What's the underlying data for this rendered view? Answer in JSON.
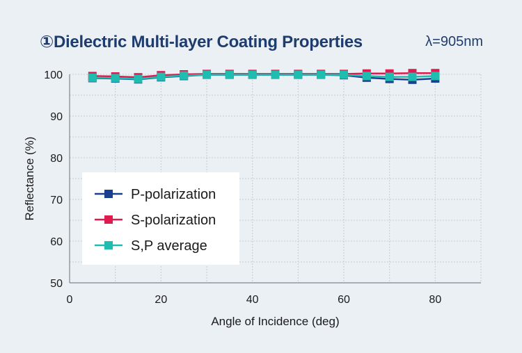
{
  "header": {
    "title": "①Dielectric Multi-layer Coating Properties",
    "wavelength": "λ=905nm"
  },
  "chart_data": {
    "type": "line",
    "title": "①Dielectric Multi-layer Coating Properties",
    "xlabel": "Angle of Incidence (deg)",
    "ylabel": "Reflectance (%)",
    "xlim": [
      0,
      90
    ],
    "ylim": [
      50,
      100
    ],
    "xticks": [
      0,
      20,
      40,
      60,
      80
    ],
    "yticks": [
      50,
      60,
      70,
      80,
      90,
      100
    ],
    "grid": true,
    "legend_position": "left-middle",
    "x": [
      5,
      10,
      15,
      20,
      25,
      30,
      35,
      40,
      45,
      50,
      55,
      60,
      65,
      70,
      75,
      80
    ],
    "series": [
      {
        "name": "P-polarization",
        "color": "#1b3f8f",
        "values": [
          99.1,
          99.0,
          98.8,
          99.3,
          99.6,
          99.9,
          99.9,
          99.9,
          99.9,
          99.9,
          99.9,
          99.8,
          99.2,
          98.9,
          98.7,
          99.0
        ]
      },
      {
        "name": "S-polarization",
        "color": "#e0194f",
        "values": [
          99.6,
          99.5,
          99.3,
          99.8,
          100.0,
          100.1,
          100.1,
          100.1,
          100.1,
          100.1,
          100.1,
          100.1,
          100.2,
          100.2,
          100.3,
          100.3
        ]
      },
      {
        "name": "S,P average",
        "color": "#1fbcb0",
        "values": [
          99.2,
          99.1,
          98.9,
          99.4,
          99.7,
          99.9,
          99.9,
          99.9,
          99.9,
          99.9,
          99.9,
          99.9,
          99.6,
          99.4,
          99.4,
          99.6
        ]
      }
    ]
  }
}
